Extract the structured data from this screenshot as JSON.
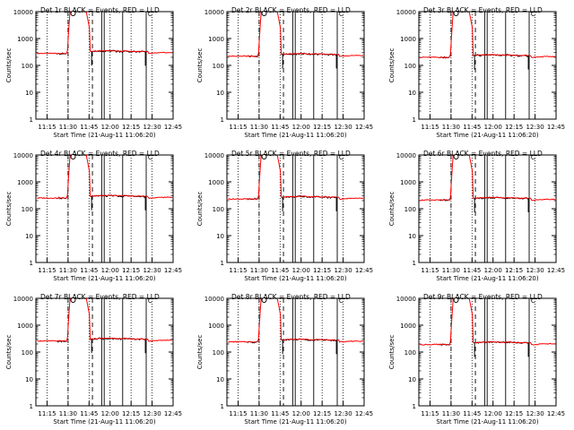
{
  "chart_data": [
    {
      "type": "line",
      "title": "Det 1r  BLACK = Events, RED = LLD",
      "xlabel": "Start Time (21-Aug-11 11:06:20)",
      "ylabel": "Counts/sec",
      "yscale": "log",
      "ylim": [
        1,
        10000
      ],
      "xlim": [
        11.117,
        12.75
      ],
      "x_ticks": [
        "11:15",
        "11:30",
        "11:45",
        "12:00",
        "12:15",
        "12:30",
        "12:45"
      ],
      "y_ticks": [
        "1",
        "10",
        "100",
        "1000",
        "10000"
      ],
      "x_tick_values": [
        11.25,
        11.5,
        11.75,
        12.0,
        12.25,
        12.5,
        12.75
      ],
      "y_tick_values": [
        1,
        10,
        100,
        1000,
        10000
      ],
      "marker_labels": [
        "O",
        "C"
      ],
      "base": 280,
      "series": [
        {
          "name": "Events",
          "color": "#000000"
        },
        {
          "name": "LLD",
          "color": "#ff0000"
        }
      ]
    },
    {
      "type": "line",
      "title": "Det 2r  BLACK = Events, RED = LLD",
      "xlabel": "Start Time (21-Aug-11 11:06:20)",
      "ylabel": "Counts/sec",
      "yscale": "log",
      "ylim": [
        1,
        10000
      ],
      "xlim": [
        11.117,
        12.75
      ],
      "x_ticks": [
        "11:15",
        "11:30",
        "11:45",
        "12:00",
        "12:15",
        "12:30",
        "12:45"
      ],
      "y_ticks": [
        "1",
        "10",
        "100",
        "1000",
        "10000"
      ],
      "x_tick_values": [
        11.25,
        11.5,
        11.75,
        12.0,
        12.25,
        12.5,
        12.75
      ],
      "y_tick_values": [
        1,
        10,
        100,
        1000,
        10000
      ],
      "marker_labels": [
        "O",
        "C"
      ],
      "base": 220,
      "series": [
        {
          "name": "Events",
          "color": "#000000"
        },
        {
          "name": "LLD",
          "color": "#ff0000"
        }
      ]
    },
    {
      "type": "line",
      "title": "Det 3r  BLACK = Events, RED = LLD",
      "xlabel": "Start Time (21-Aug-11 11:06:20)",
      "ylabel": "Counts/sec",
      "yscale": "log",
      "ylim": [
        1,
        10000
      ],
      "xlim": [
        11.117,
        12.75
      ],
      "x_ticks": [
        "11:15",
        "11:30",
        "11:45",
        "12:00",
        "12:15",
        "12:30",
        "12:45"
      ],
      "y_ticks": [
        "1",
        "10",
        "100",
        "1000",
        "10000"
      ],
      "x_tick_values": [
        11.25,
        11.5,
        11.75,
        12.0,
        12.25,
        12.5,
        12.75
      ],
      "y_tick_values": [
        1,
        10,
        100,
        1000,
        10000
      ],
      "marker_labels": [
        "O",
        "C"
      ],
      "base": 200,
      "series": [
        {
          "name": "Events",
          "color": "#000000"
        },
        {
          "name": "LLD",
          "color": "#ff0000"
        }
      ]
    },
    {
      "type": "line",
      "title": "Det 4r  BLACK = Events, RED = LLD",
      "xlabel": "Start Time (21-Aug-11 11:06:20)",
      "ylabel": "Counts/sec",
      "yscale": "log",
      "ylim": [
        1,
        10000
      ],
      "xlim": [
        11.117,
        12.75
      ],
      "x_ticks": [
        "11:15",
        "11:30",
        "11:45",
        "12:00",
        "12:15",
        "12:30",
        "12:45"
      ],
      "y_ticks": [
        "1",
        "10",
        "100",
        "1000",
        "10000"
      ],
      "x_tick_values": [
        11.25,
        11.5,
        11.75,
        12.0,
        12.25,
        12.5,
        12.75
      ],
      "y_tick_values": [
        1,
        10,
        100,
        1000,
        10000
      ],
      "marker_labels": [
        "O",
        "C"
      ],
      "base": 250,
      "series": [
        {
          "name": "Events",
          "color": "#000000"
        },
        {
          "name": "LLD",
          "color": "#ff0000"
        }
      ]
    },
    {
      "type": "line",
      "title": "Det 5r  BLACK = Events, RED = LLD",
      "xlabel": "Start Time (21-Aug-11 11:06:20)",
      "ylabel": "Counts/sec",
      "yscale": "log",
      "ylim": [
        1,
        10000
      ],
      "xlim": [
        11.117,
        12.75
      ],
      "x_ticks": [
        "11:15",
        "11:30",
        "11:45",
        "12:00",
        "12:15",
        "12:30",
        "12:45"
      ],
      "y_ticks": [
        "1",
        "10",
        "100",
        "1000",
        "10000"
      ],
      "x_tick_values": [
        11.25,
        11.5,
        11.75,
        12.0,
        12.25,
        12.5,
        12.75
      ],
      "y_tick_values": [
        1,
        10,
        100,
        1000,
        10000
      ],
      "marker_labels": [
        "O",
        "C"
      ],
      "base": 230,
      "series": [
        {
          "name": "Events",
          "color": "#000000"
        },
        {
          "name": "LLD",
          "color": "#ff0000"
        }
      ]
    },
    {
      "type": "line",
      "title": "Det 6r  BLACK = Events, RED = LLD",
      "xlabel": "Start Time (21-Aug-11 11:06:20)",
      "ylabel": "Counts/sec",
      "yscale": "log",
      "ylim": [
        1,
        10000
      ],
      "xlim": [
        11.117,
        12.75
      ],
      "x_ticks": [
        "11:15",
        "11:30",
        "11:45",
        "12:00",
        "12:15",
        "12:30",
        "12:45"
      ],
      "y_ticks": [
        "1",
        "10",
        "100",
        "1000",
        "10000"
      ],
      "x_tick_values": [
        11.25,
        11.5,
        11.75,
        12.0,
        12.25,
        12.5,
        12.75
      ],
      "y_tick_values": [
        1,
        10,
        100,
        1000,
        10000
      ],
      "marker_labels": [
        "O",
        "C"
      ],
      "base": 210,
      "series": [
        {
          "name": "Events",
          "color": "#000000"
        },
        {
          "name": "LLD",
          "color": "#ff0000"
        }
      ]
    },
    {
      "type": "line",
      "title": "Det 7r  BLACK = Events, RED = LLD",
      "xlabel": "Start Time (21-Aug-11 11:06:20)",
      "ylabel": "Counts/sec",
      "yscale": "log",
      "ylim": [
        1,
        10000
      ],
      "xlim": [
        11.117,
        12.75
      ],
      "x_ticks": [
        "11:15",
        "11:30",
        "11:45",
        "12:00",
        "12:15",
        "12:30",
        "12:45"
      ],
      "y_ticks": [
        "1",
        "10",
        "100",
        "1000",
        "10000"
      ],
      "x_tick_values": [
        11.25,
        11.5,
        11.75,
        12.0,
        12.25,
        12.5,
        12.75
      ],
      "y_tick_values": [
        1,
        10,
        100,
        1000,
        10000
      ],
      "marker_labels": [
        "O",
        "C"
      ],
      "base": 260,
      "series": [
        {
          "name": "Events",
          "color": "#000000"
        },
        {
          "name": "LLD",
          "color": "#ff0000"
        }
      ]
    },
    {
      "type": "line",
      "title": "Det 8r  BLACK = Events, RED = LLD",
      "xlabel": "Start Time (21-Aug-11 11:06:20)",
      "ylabel": "Counts/sec",
      "yscale": "log",
      "ylim": [
        1,
        10000
      ],
      "xlim": [
        11.117,
        12.75
      ],
      "x_ticks": [
        "11:15",
        "11:30",
        "11:45",
        "12:00",
        "12:15",
        "12:30",
        "12:45"
      ],
      "y_ticks": [
        "1",
        "10",
        "100",
        "1000",
        "10000"
      ],
      "x_tick_values": [
        11.25,
        11.5,
        11.75,
        12.0,
        12.25,
        12.5,
        12.75
      ],
      "y_tick_values": [
        1,
        10,
        100,
        1000,
        10000
      ],
      "marker_labels": [
        "O",
        "C"
      ],
      "base": 240,
      "series": [
        {
          "name": "Events",
          "color": "#000000"
        },
        {
          "name": "LLD",
          "color": "#ff0000"
        }
      ]
    },
    {
      "type": "line",
      "title": "Det 9r  BLACK = Events, RED = LLD",
      "xlabel": "Start Time (21-Aug-11 11:06:20)",
      "ylabel": "Counts/sec",
      "yscale": "log",
      "ylim": [
        1,
        10000
      ],
      "xlim": [
        11.117,
        12.75
      ],
      "x_ticks": [
        "11:15",
        "11:30",
        "11:45",
        "12:00",
        "12:15",
        "12:30",
        "12:45"
      ],
      "y_ticks": [
        "1",
        "10",
        "100",
        "1000",
        "10000"
      ],
      "x_tick_values": [
        11.25,
        11.5,
        11.75,
        12.0,
        12.25,
        12.5,
        12.75
      ],
      "y_tick_values": [
        1,
        10,
        100,
        1000,
        10000
      ],
      "marker_labels": [
        "O",
        "C"
      ],
      "base": 190,
      "series": [
        {
          "name": "Events",
          "color": "#000000"
        },
        {
          "name": "LLD",
          "color": "#ff0000"
        }
      ]
    }
  ],
  "colors": {
    "events": "#000000",
    "lld": "#ff0000",
    "background": "#ffffff"
  }
}
